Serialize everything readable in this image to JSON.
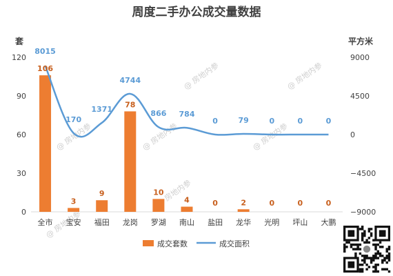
{
  "chart_data": {
    "type": "bar",
    "title": "周度二手办公成交量数据",
    "categories": [
      "全市",
      "宝安",
      "福田",
      "龙岗",
      "罗湖",
      "南山",
      "盐田",
      "龙华",
      "光明",
      "坪山",
      "大鹏"
    ],
    "y_left_label": "套",
    "y_right_label": "平方米",
    "ylim_left": [
      0,
      120
    ],
    "yticks_left": [
      "0",
      "30",
      "60",
      "90",
      "120"
    ],
    "ylim_right": [
      -9000,
      9000
    ],
    "yticks_right": [
      "-9000",
      "-4500",
      "0",
      "4500",
      "9000"
    ],
    "series": [
      {
        "name": "成交套数",
        "type": "bar",
        "axis": "left",
        "color": "#ed7d31",
        "values": [
          106,
          3,
          9,
          78,
          10,
          4,
          0,
          2,
          0,
          0,
          0
        ]
      },
      {
        "name": "成交面积",
        "type": "line",
        "axis": "right",
        "color": "#5b9bd5",
        "values": [
          8015,
          170,
          1371,
          4744,
          866,
          784,
          0,
          79,
          0,
          0,
          0
        ]
      }
    ],
    "legend_position": "bottom",
    "grid": false
  },
  "watermark": "房地内参"
}
